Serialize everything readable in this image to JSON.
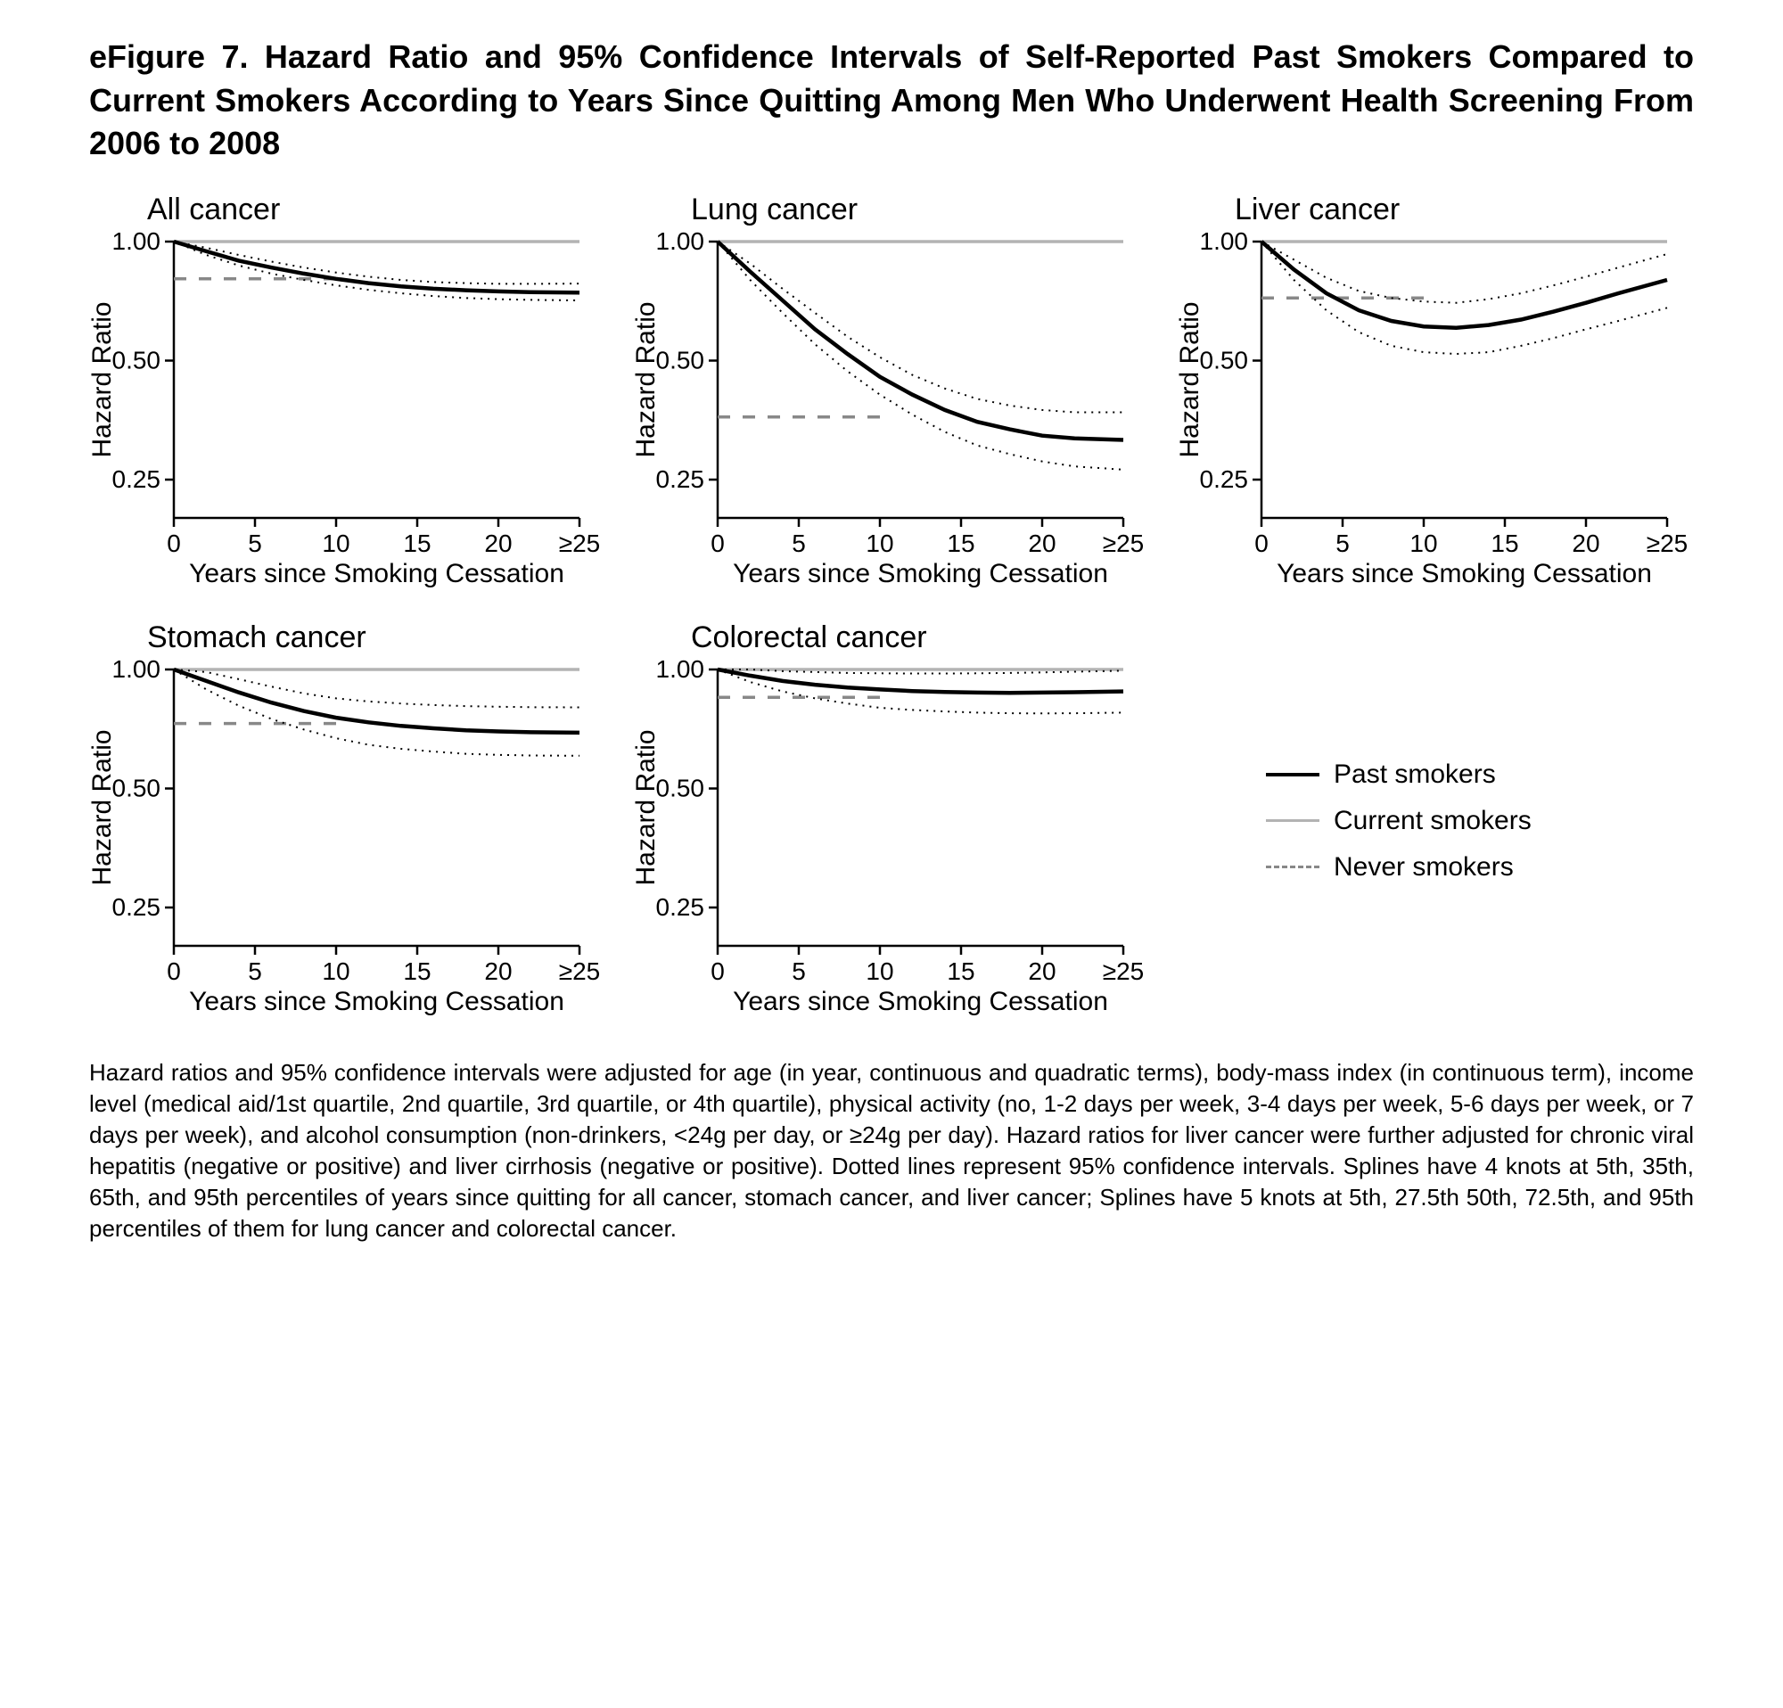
{
  "title": "eFigure 7. Hazard Ratio and 95% Confidence Intervals of Self-Reported Past Smokers Compared to Current Smokers According to Years Since Quitting Among Men Who Underwent Health Screening From 2006 to 2008",
  "caption": "Hazard ratios and 95% confidence intervals were adjusted for age (in year, continuous and quadratic terms), body-mass index (in continuous term), income level (medical aid/1st quartile, 2nd quartile, 3rd quartile, or 4th quartile), physical activity (no, 1-2 days per week, 3-4 days per week, 5-6 days per week, or 7 days per week), and alcohol consumption (non-drinkers, <24g per day, or ≥24g per day). Hazard ratios for liver cancer were further adjusted for chronic viral hepatitis (negative or positive) and liver cirrhosis (negative or positive). Dotted lines represent 95% confidence intervals. Splines have 4 knots at 5th, 35th, 65th, and 95th percentiles of years since quitting for all cancer, stomach cancer, and liver cancer; Splines have 5 knots at 5th, 27.5th 50th, 72.5th, and 95th percentiles of them for lung cancer and colorectal cancer.",
  "common": {
    "x_label": "Years since Smoking Cessation",
    "y_label": "Hazard Ratio",
    "x_ticks": [
      0,
      5,
      10,
      15,
      20,
      25
    ],
    "x_ticklabels": [
      "0",
      "5",
      "10",
      "15",
      "20",
      "≥25"
    ],
    "y_ticks": [
      0.25,
      0.5,
      1.0
    ],
    "y_ticklabels": [
      "0.25",
      "0.50",
      "1.00"
    ],
    "x_domain": [
      0,
      25
    ],
    "y_domain_log": [
      0.2,
      1.0
    ],
    "axis_color": "#000000",
    "tick_fontsize": 28,
    "label_fontsize": 30,
    "past_color": "#000000",
    "past_width": 4.5,
    "ci_color": "#000000",
    "ci_dash": "2,6",
    "ci_width": 2,
    "current_color": "#b3b3b3",
    "current_width": 3.5,
    "never_color": "#888888",
    "never_dash": "14,14",
    "never_width": 3.5
  },
  "legend": {
    "past": "Past smokers",
    "current": "Current smokers",
    "never": "Never smokers"
  },
  "panels": [
    {
      "title": "All cancer",
      "never_hr": 0.805,
      "past_x": [
        0,
        2,
        4,
        6,
        8,
        10,
        12,
        14,
        16,
        18,
        20,
        22,
        25
      ],
      "past_hr": [
        1.0,
        0.945,
        0.895,
        0.86,
        0.83,
        0.805,
        0.785,
        0.77,
        0.76,
        0.753,
        0.748,
        0.745,
        0.743
      ],
      "ci_lo": [
        1.0,
        0.925,
        0.87,
        0.83,
        0.8,
        0.775,
        0.755,
        0.74,
        0.728,
        0.72,
        0.715,
        0.712,
        0.71
      ],
      "ci_hi": [
        1.0,
        0.965,
        0.925,
        0.89,
        0.86,
        0.835,
        0.815,
        0.8,
        0.79,
        0.785,
        0.782,
        0.782,
        0.783
      ]
    },
    {
      "title": "Lung cancer",
      "never_hr": 0.36,
      "past_x": [
        0,
        2,
        4,
        6,
        8,
        10,
        12,
        14,
        16,
        18,
        20,
        22,
        25
      ],
      "past_hr": [
        1.0,
        0.84,
        0.71,
        0.6,
        0.52,
        0.455,
        0.41,
        0.375,
        0.35,
        0.335,
        0.323,
        0.318,
        0.315
      ],
      "ci_lo": [
        1.0,
        0.8,
        0.66,
        0.55,
        0.47,
        0.41,
        0.365,
        0.33,
        0.305,
        0.29,
        0.278,
        0.27,
        0.265
      ],
      "ci_hi": [
        1.0,
        0.88,
        0.76,
        0.66,
        0.575,
        0.51,
        0.46,
        0.425,
        0.4,
        0.385,
        0.375,
        0.37,
        0.37
      ]
    },
    {
      "title": "Liver cancer",
      "never_hr": 0.72,
      "past_x": [
        0,
        2,
        4,
        6,
        8,
        10,
        12,
        14,
        16,
        18,
        20,
        22,
        25
      ],
      "past_hr": [
        1.0,
        0.85,
        0.74,
        0.67,
        0.63,
        0.61,
        0.605,
        0.615,
        0.635,
        0.665,
        0.7,
        0.74,
        0.8
      ],
      "ci_lo": [
        1.0,
        0.8,
        0.67,
        0.59,
        0.545,
        0.525,
        0.52,
        0.525,
        0.545,
        0.57,
        0.6,
        0.63,
        0.68
      ],
      "ci_hi": [
        1.0,
        0.9,
        0.81,
        0.75,
        0.72,
        0.705,
        0.7,
        0.715,
        0.74,
        0.775,
        0.815,
        0.86,
        0.93
      ]
    },
    {
      "title": "Stomach cancer",
      "never_hr": 0.73,
      "past_x": [
        0,
        2,
        4,
        6,
        8,
        10,
        12,
        14,
        16,
        18,
        20,
        22,
        25
      ],
      "past_hr": [
        1.0,
        0.935,
        0.875,
        0.825,
        0.785,
        0.755,
        0.735,
        0.72,
        0.71,
        0.702,
        0.697,
        0.694,
        0.692
      ],
      "ci_lo": [
        1.0,
        0.89,
        0.81,
        0.75,
        0.705,
        0.67,
        0.645,
        0.63,
        0.62,
        0.612,
        0.608,
        0.606,
        0.605
      ],
      "ci_hi": [
        1.0,
        0.985,
        0.945,
        0.905,
        0.87,
        0.845,
        0.83,
        0.82,
        0.813,
        0.808,
        0.805,
        0.803,
        0.802
      ]
    },
    {
      "title": "Colorectal cancer",
      "never_hr": 0.85,
      "past_x": [
        0,
        2,
        4,
        6,
        8,
        10,
        12,
        14,
        16,
        18,
        20,
        22,
        25
      ],
      "past_hr": [
        1.0,
        0.965,
        0.935,
        0.915,
        0.9,
        0.89,
        0.882,
        0.877,
        0.874,
        0.873,
        0.874,
        0.876,
        0.88
      ],
      "ci_lo": [
        1.0,
        0.93,
        0.88,
        0.845,
        0.82,
        0.8,
        0.79,
        0.783,
        0.778,
        0.775,
        0.774,
        0.775,
        0.778
      ],
      "ci_hi": [
        1.0,
        1.0,
        0.99,
        0.985,
        0.98,
        0.978,
        0.977,
        0.977,
        0.978,
        0.98,
        0.983,
        0.987,
        0.993
      ]
    }
  ]
}
